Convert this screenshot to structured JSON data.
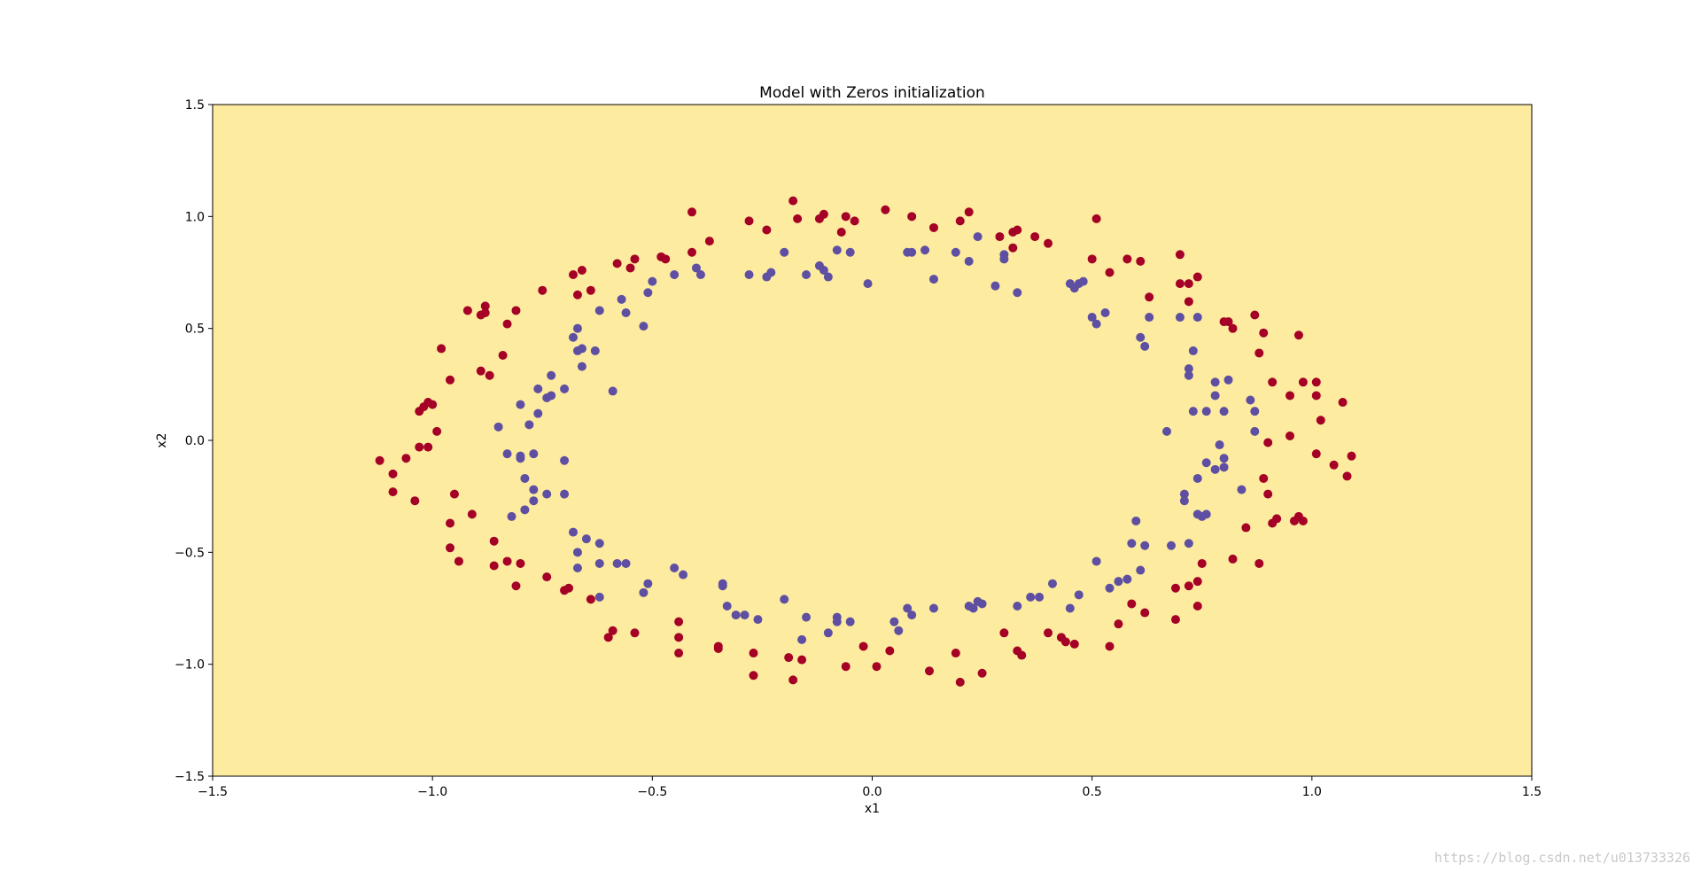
{
  "chart_data": {
    "type": "scatter",
    "title": "Model with Zeros initialization",
    "xlabel": "x1",
    "ylabel": "x2",
    "xlim": [
      -1.5,
      1.5
    ],
    "ylim": [
      -1.5,
      1.5
    ],
    "xticks": [
      "−1.5",
      "−1.0",
      "−0.5",
      "0.0",
      "0.5",
      "1.0",
      "1.5"
    ],
    "yticks": [
      "−1.5",
      "−1.0",
      "−0.5",
      "0.0",
      "0.5",
      "1.0",
      "1.5"
    ],
    "grid": false,
    "background_color": "#fdeba0",
    "series": [
      {
        "color": "#a50026",
        "points": [
          [
            -1.12,
            -0.09
          ],
          [
            -1.09,
            -0.15
          ],
          [
            -1.09,
            -0.23
          ],
          [
            -1.06,
            -0.08
          ],
          [
            -1.04,
            -0.27
          ],
          [
            -1.03,
            0.13
          ],
          [
            -1.02,
            0.15
          ],
          [
            -1.01,
            0.17
          ],
          [
            -1.0,
            0.16
          ],
          [
            -1.03,
            -0.03
          ],
          [
            -1.01,
            -0.03
          ],
          [
            -0.99,
            0.04
          ],
          [
            -0.98,
            0.41
          ],
          [
            -0.96,
            0.27
          ],
          [
            -0.95,
            -0.24
          ],
          [
            -0.96,
            -0.48
          ],
          [
            -0.94,
            -0.54
          ],
          [
            -0.92,
            0.58
          ],
          [
            -0.91,
            -0.33
          ],
          [
            -0.89,
            0.56
          ],
          [
            -0.88,
            0.57
          ],
          [
            -0.88,
            0.6
          ],
          [
            -0.89,
            0.31
          ],
          [
            -0.87,
            0.29
          ],
          [
            -0.86,
            -0.45
          ],
          [
            -0.84,
            0.38
          ],
          [
            -0.83,
            0.52
          ],
          [
            -0.83,
            -0.54
          ],
          [
            -0.81,
            0.58
          ],
          [
            -0.81,
            -0.65
          ],
          [
            -0.8,
            -0.55
          ],
          [
            -0.86,
            -0.56
          ],
          [
            -0.96,
            -0.37
          ],
          [
            -0.75,
            0.67
          ],
          [
            -0.74,
            -0.61
          ],
          [
            -0.7,
            -0.67
          ],
          [
            -0.69,
            -0.66
          ],
          [
            -0.68,
            0.74
          ],
          [
            -0.67,
            0.65
          ],
          [
            -0.66,
            0.76
          ],
          [
            -0.64,
            0.67
          ],
          [
            -0.64,
            -0.71
          ],
          [
            -0.6,
            -0.88
          ],
          [
            -0.59,
            -0.85
          ],
          [
            -0.58,
            0.79
          ],
          [
            -0.55,
            0.77
          ],
          [
            -0.54,
            0.81
          ],
          [
            -0.54,
            -0.86
          ],
          [
            -0.48,
            0.82
          ],
          [
            -0.47,
            0.81
          ],
          [
            -0.44,
            -0.81
          ],
          [
            -0.44,
            -0.88
          ],
          [
            -0.44,
            -0.95
          ],
          [
            -0.41,
            1.02
          ],
          [
            -0.41,
            0.84
          ],
          [
            -0.37,
            0.89
          ],
          [
            -0.35,
            -0.92
          ],
          [
            -0.35,
            -0.93
          ],
          [
            -0.28,
            0.98
          ],
          [
            -0.27,
            -0.95
          ],
          [
            -0.27,
            -1.05
          ],
          [
            -0.24,
            0.94
          ],
          [
            -0.18,
            1.07
          ],
          [
            -0.17,
            0.99
          ],
          [
            -0.19,
            -0.97
          ],
          [
            -0.18,
            -1.07
          ],
          [
            -0.16,
            -0.98
          ],
          [
            -0.12,
            0.99
          ],
          [
            -0.11,
            1.01
          ],
          [
            -0.07,
            0.93
          ],
          [
            -0.06,
            1.0
          ],
          [
            -0.04,
            0.98
          ],
          [
            -0.06,
            -1.01
          ],
          [
            -0.02,
            -0.92
          ],
          [
            0.01,
            -1.01
          ],
          [
            0.03,
            1.03
          ],
          [
            0.04,
            -0.94
          ],
          [
            0.09,
            1.0
          ],
          [
            0.13,
            -1.03
          ],
          [
            0.14,
            0.95
          ],
          [
            0.19,
            -0.95
          ],
          [
            0.2,
            0.98
          ],
          [
            0.2,
            -1.08
          ],
          [
            0.22,
            1.02
          ],
          [
            0.25,
            -1.04
          ],
          [
            0.29,
            0.91
          ],
          [
            0.3,
            -0.86
          ],
          [
            0.32,
            0.93
          ],
          [
            0.32,
            0.86
          ],
          [
            0.33,
            0.94
          ],
          [
            0.33,
            -0.94
          ],
          [
            0.34,
            -0.96
          ],
          [
            0.37,
            0.91
          ],
          [
            0.4,
            0.88
          ],
          [
            0.4,
            -0.86
          ],
          [
            0.43,
            -0.88
          ],
          [
            0.44,
            -0.9
          ],
          [
            0.46,
            -0.91
          ],
          [
            0.5,
            0.81
          ],
          [
            0.51,
            0.99
          ],
          [
            0.54,
            0.75
          ],
          [
            0.54,
            -0.92
          ],
          [
            0.56,
            -0.82
          ],
          [
            0.58,
            0.81
          ],
          [
            0.59,
            -0.73
          ],
          [
            0.61,
            0.8
          ],
          [
            0.62,
            -0.77
          ],
          [
            0.63,
            0.64
          ],
          [
            0.69,
            -0.66
          ],
          [
            0.69,
            -0.8
          ],
          [
            0.7,
            0.83
          ],
          [
            0.7,
            0.7
          ],
          [
            0.72,
            0.7
          ],
          [
            0.72,
            0.62
          ],
          [
            0.72,
            -0.65
          ],
          [
            0.74,
            0.73
          ],
          [
            0.74,
            -0.63
          ],
          [
            0.74,
            -0.74
          ],
          [
            0.75,
            -0.55
          ],
          [
            0.8,
            0.53
          ],
          [
            0.81,
            0.53
          ],
          [
            0.82,
            0.5
          ],
          [
            0.82,
            -0.53
          ],
          [
            0.85,
            -0.39
          ],
          [
            0.87,
            0.56
          ],
          [
            0.88,
            0.39
          ],
          [
            0.88,
            -0.55
          ],
          [
            0.89,
            0.48
          ],
          [
            0.89,
            -0.17
          ],
          [
            0.9,
            -0.24
          ],
          [
            0.9,
            -0.01
          ],
          [
            0.91,
            0.26
          ],
          [
            0.91,
            -0.37
          ],
          [
            0.92,
            -0.35
          ],
          [
            0.95,
            0.02
          ],
          [
            0.95,
            0.2
          ],
          [
            0.96,
            -0.36
          ],
          [
            0.97,
            0.47
          ],
          [
            0.97,
            -0.34
          ],
          [
            0.98,
            -0.36
          ],
          [
            0.98,
            0.26
          ],
          [
            1.01,
            0.2
          ],
          [
            1.01,
            0.26
          ],
          [
            1.01,
            -0.06
          ],
          [
            1.02,
            0.09
          ],
          [
            1.05,
            -0.11
          ],
          [
            1.07,
            0.17
          ],
          [
            1.08,
            -0.16
          ],
          [
            1.09,
            -0.07
          ]
        ]
      },
      {
        "color": "#5e4fa2",
        "points": [
          [
            -0.85,
            0.06
          ],
          [
            -0.83,
            -0.06
          ],
          [
            -0.82,
            -0.34
          ],
          [
            -0.8,
            0.16
          ],
          [
            -0.8,
            -0.07
          ],
          [
            -0.8,
            -0.08
          ],
          [
            -0.79,
            -0.17
          ],
          [
            -0.79,
            -0.31
          ],
          [
            -0.78,
            0.07
          ],
          [
            -0.77,
            -0.06
          ],
          [
            -0.77,
            -0.22
          ],
          [
            -0.77,
            -0.27
          ],
          [
            -0.76,
            0.23
          ],
          [
            -0.76,
            0.12
          ],
          [
            -0.74,
            0.19
          ],
          [
            -0.73,
            0.2
          ],
          [
            -0.73,
            0.29
          ],
          [
            -0.74,
            -0.24
          ],
          [
            -0.7,
            0.23
          ],
          [
            -0.7,
            -0.09
          ],
          [
            -0.7,
            -0.24
          ],
          [
            -0.68,
            0.46
          ],
          [
            -0.67,
            0.5
          ],
          [
            -0.67,
            0.4
          ],
          [
            -0.66,
            0.41
          ],
          [
            -0.66,
            0.33
          ],
          [
            -0.68,
            -0.41
          ],
          [
            -0.67,
            -0.5
          ],
          [
            -0.67,
            -0.57
          ],
          [
            -0.65,
            -0.44
          ],
          [
            -0.63,
            0.4
          ],
          [
            -0.62,
            0.58
          ],
          [
            -0.62,
            -0.46
          ],
          [
            -0.62,
            -0.55
          ],
          [
            -0.62,
            -0.7
          ],
          [
            -0.59,
            0.22
          ],
          [
            -0.58,
            -0.55
          ],
          [
            -0.57,
            0.63
          ],
          [
            -0.56,
            0.57
          ],
          [
            -0.56,
            -0.55
          ],
          [
            -0.52,
            0.51
          ],
          [
            -0.51,
            0.66
          ],
          [
            -0.51,
            -0.64
          ],
          [
            -0.5,
            0.71
          ],
          [
            -0.52,
            -0.68
          ],
          [
            -0.45,
            0.74
          ],
          [
            -0.45,
            -0.57
          ],
          [
            -0.43,
            -0.6
          ],
          [
            -0.4,
            0.77
          ],
          [
            -0.39,
            0.74
          ],
          [
            -0.34,
            -0.64
          ],
          [
            -0.34,
            -0.65
          ],
          [
            -0.33,
            -0.74
          ],
          [
            -0.31,
            -0.78
          ],
          [
            -0.29,
            -0.78
          ],
          [
            -0.28,
            0.74
          ],
          [
            -0.26,
            -0.8
          ],
          [
            -0.24,
            0.73
          ],
          [
            -0.23,
            0.75
          ],
          [
            -0.2,
            0.84
          ],
          [
            -0.2,
            -0.71
          ],
          [
            -0.16,
            -0.89
          ],
          [
            -0.15,
            -0.79
          ],
          [
            -0.15,
            0.74
          ],
          [
            -0.12,
            0.78
          ],
          [
            -0.11,
            0.76
          ],
          [
            -0.1,
            0.73
          ],
          [
            -0.1,
            -0.86
          ],
          [
            -0.08,
            0.85
          ],
          [
            -0.08,
            -0.79
          ],
          [
            -0.08,
            -0.81
          ],
          [
            -0.05,
            0.84
          ],
          [
            -0.05,
            -0.81
          ],
          [
            -0.01,
            0.7
          ],
          [
            0.05,
            -0.81
          ],
          [
            0.06,
            -0.85
          ],
          [
            0.08,
            0.84
          ],
          [
            0.08,
            -0.75
          ],
          [
            0.09,
            0.84
          ],
          [
            0.09,
            -0.78
          ],
          [
            0.12,
            0.85
          ],
          [
            0.14,
            0.72
          ],
          [
            0.14,
            -0.75
          ],
          [
            0.19,
            0.84
          ],
          [
            0.22,
            0.8
          ],
          [
            0.22,
            -0.74
          ],
          [
            0.23,
            -0.75
          ],
          [
            0.24,
            -0.72
          ],
          [
            0.24,
            0.91
          ],
          [
            0.25,
            -0.73
          ],
          [
            0.28,
            0.69
          ],
          [
            0.3,
            0.83
          ],
          [
            0.3,
            0.81
          ],
          [
            0.33,
            0.66
          ],
          [
            0.33,
            -0.74
          ],
          [
            0.36,
            -0.7
          ],
          [
            0.38,
            -0.7
          ],
          [
            0.41,
            -0.64
          ],
          [
            0.45,
            0.7
          ],
          [
            0.45,
            -0.75
          ],
          [
            0.46,
            0.68
          ],
          [
            0.47,
            -0.69
          ],
          [
            0.47,
            0.7
          ],
          [
            0.48,
            0.71
          ],
          [
            0.5,
            0.55
          ],
          [
            0.51,
            0.52
          ],
          [
            0.51,
            -0.54
          ],
          [
            0.53,
            0.57
          ],
          [
            0.54,
            -0.66
          ],
          [
            0.56,
            -0.63
          ],
          [
            0.58,
            -0.62
          ],
          [
            0.59,
            -0.46
          ],
          [
            0.6,
            -0.36
          ],
          [
            0.61,
            0.46
          ],
          [
            0.61,
            -0.58
          ],
          [
            0.62,
            -0.47
          ],
          [
            0.62,
            0.42
          ],
          [
            0.63,
            0.55
          ],
          [
            0.67,
            0.04
          ],
          [
            0.68,
            -0.47
          ],
          [
            0.7,
            0.55
          ],
          [
            0.71,
            -0.24
          ],
          [
            0.71,
            -0.27
          ],
          [
            0.72,
            -0.46
          ],
          [
            0.72,
            0.32
          ],
          [
            0.72,
            0.29
          ],
          [
            0.73,
            0.4
          ],
          [
            0.73,
            0.13
          ],
          [
            0.74,
            0.55
          ],
          [
            0.74,
            -0.17
          ],
          [
            0.74,
            -0.33
          ],
          [
            0.75,
            -0.34
          ],
          [
            0.76,
            -0.33
          ],
          [
            0.76,
            0.13
          ],
          [
            0.76,
            -0.1
          ],
          [
            0.78,
            0.26
          ],
          [
            0.78,
            0.2
          ],
          [
            0.78,
            -0.13
          ],
          [
            0.79,
            -0.02
          ],
          [
            0.8,
            0.13
          ],
          [
            0.8,
            -0.08
          ],
          [
            0.8,
            -0.12
          ],
          [
            0.81,
            0.27
          ],
          [
            0.84,
            -0.22
          ],
          [
            0.86,
            0.18
          ],
          [
            0.87,
            0.13
          ],
          [
            0.87,
            0.04
          ]
        ]
      }
    ]
  },
  "watermark": "https://blog.csdn.net/u013733326"
}
